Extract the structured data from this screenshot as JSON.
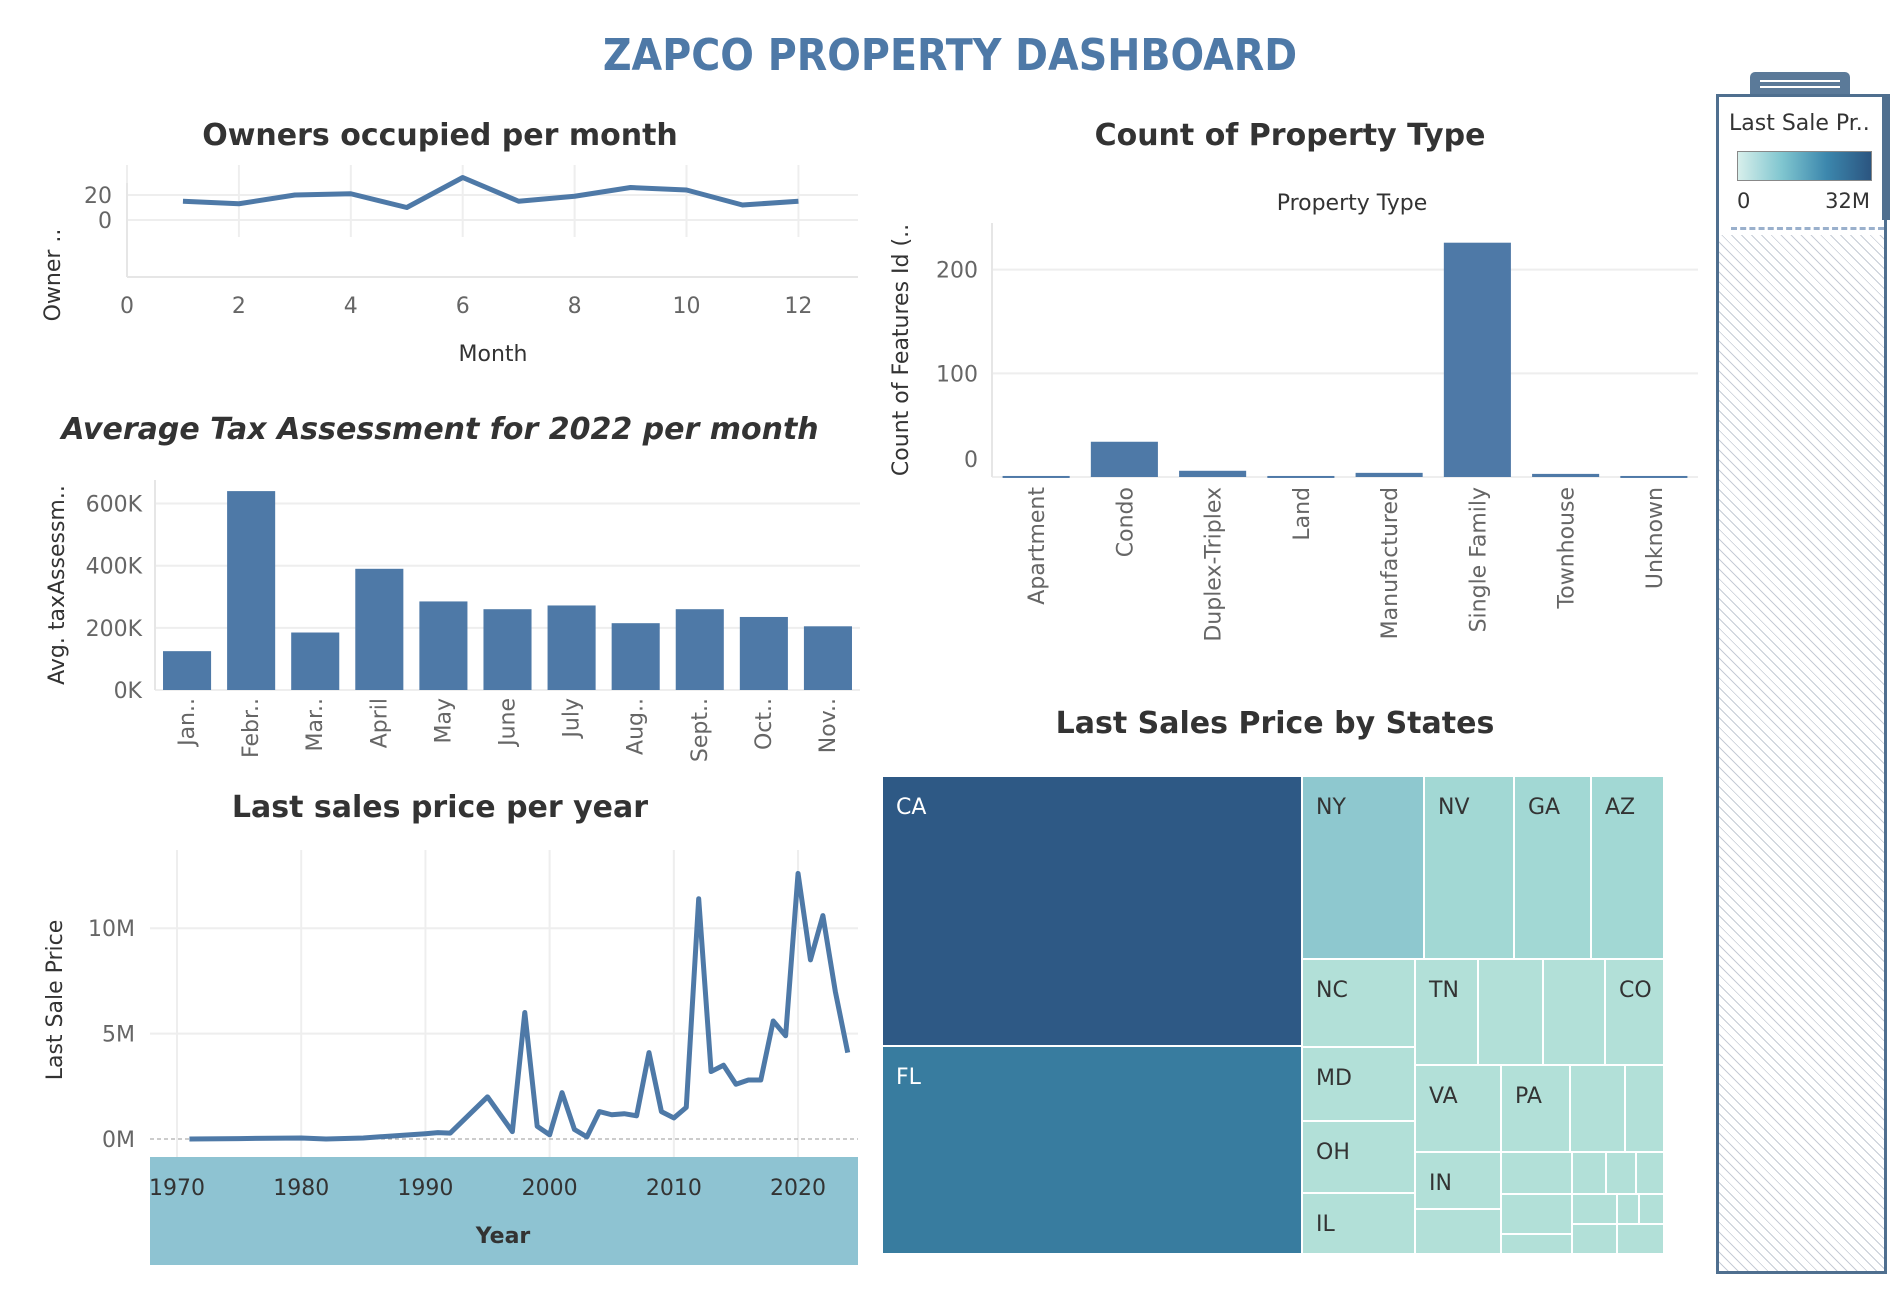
{
  "dashboard": {
    "title": "ZAPCO PROPERTY DASHBOARD"
  },
  "legend": {
    "title": "Last Sale Pr..",
    "min_label": "0",
    "max_label": "32M"
  },
  "chart_data": [
    {
      "type": "line",
      "title": "Owners occupied per month",
      "xlabel": "Month",
      "ylabel": "Owner ..",
      "x_ticks": [
        "0",
        "2",
        "4",
        "6",
        "8",
        "10",
        "12"
      ],
      "y_ticks": [
        "0",
        "20"
      ],
      "xlim": [
        0,
        12.6
      ],
      "ylim": [
        -4,
        36
      ],
      "x": [
        1,
        2,
        3,
        4,
        5,
        6,
        7,
        8,
        9,
        10,
        11,
        12
      ],
      "values": [
        15,
        13,
        20,
        21,
        10,
        34,
        15,
        19,
        26,
        24,
        12,
        15
      ]
    },
    {
      "type": "bar",
      "title": "Average Tax Assessment for 2022 per month",
      "ylabel": "Avg. taxAssessm..",
      "y_ticks": [
        "0K",
        "200K",
        "400K",
        "600K"
      ],
      "ylim": [
        0,
        650000
      ],
      "categories": [
        "Jan..",
        "Febr..",
        "Mar..",
        "April",
        "May",
        "June",
        "July",
        "Aug..",
        "Sept..",
        "Oct..",
        "Nov.."
      ],
      "values": [
        125000,
        640000,
        185000,
        390000,
        285000,
        260000,
        272000,
        215000,
        260000,
        235000,
        205000
      ]
    },
    {
      "type": "line",
      "title": "Last sales price per year",
      "xlabel": "Year",
      "ylabel": "Last Sale Price",
      "x_ticks": [
        "1970",
        "1980",
        "1990",
        "2000",
        "2010",
        "2020"
      ],
      "y_ticks": [
        "0M",
        "5M",
        "10M"
      ],
      "xlim": [
        1970,
        2027
      ],
      "ylim": [
        0,
        13000000
      ],
      "x": [
        1971,
        1975,
        1980,
        1982,
        1985,
        1990,
        1991,
        1992,
        1995,
        1997,
        1998,
        1999,
        2000,
        2001,
        2002,
        2003,
        2004,
        2005,
        2006,
        2007,
        2008,
        2009,
        2010,
        2011,
        2012,
        2013,
        2014,
        2015,
        2016,
        2017,
        2018,
        2019,
        2020,
        2021,
        2022,
        2023,
        2024
      ],
      "values": [
        0,
        20000,
        50000,
        0,
        50000,
        250000,
        300000,
        280000,
        2000000,
        350000,
        6000000,
        600000,
        200000,
        2200000,
        450000,
        100000,
        1300000,
        1150000,
        1200000,
        1100000,
        4100000,
        1300000,
        1000000,
        1500000,
        11400000,
        3200000,
        3500000,
        2600000,
        2800000,
        2800000,
        5600000,
        4900000,
        12600000,
        8500000,
        10600000,
        7000000,
        4100000
      ]
    },
    {
      "type": "bar",
      "title": "Count of Property Type",
      "subtitle": "Property Type",
      "ylabel": "Count of Features Id (..",
      "y_ticks": [
        "0",
        "100",
        "200"
      ],
      "ylim": [
        0,
        245
      ],
      "categories": [
        "Apartment",
        "Condo",
        "Duplex-Triplex",
        "Land",
        "Manufactured",
        "Single Family",
        "Townhouse",
        "Unknown"
      ],
      "values": [
        1,
        34,
        6,
        1,
        4,
        226,
        3,
        1
      ]
    },
    {
      "type": "heatmap",
      "title": "Last Sales Price by States",
      "labeled_states": [
        "CA",
        "FL",
        "NY",
        "NV",
        "GA",
        "AZ",
        "NC",
        "TN",
        "CO",
        "MD",
        "VA",
        "PA",
        "OH",
        "IN",
        "IL"
      ]
    }
  ]
}
